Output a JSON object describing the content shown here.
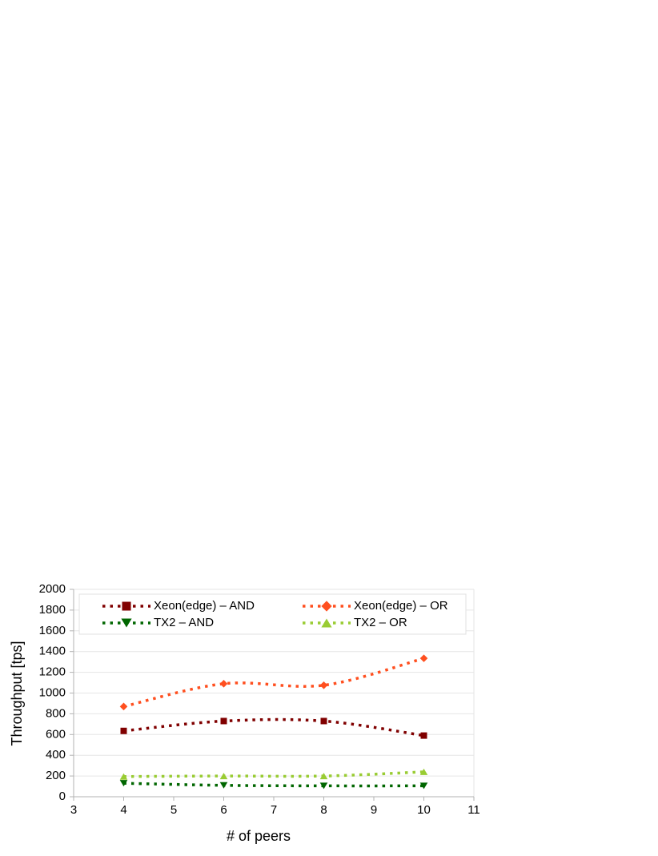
{
  "chart_data": {
    "type": "line",
    "x_label": "# of peers",
    "y_label": "Throughput [tps]",
    "x": [
      4,
      6,
      8,
      10
    ],
    "series": [
      {
        "name": "Xeon(edge) – AND",
        "color": "#800000",
        "marker": "square",
        "values": [
          635,
          730,
          730,
          590
        ]
      },
      {
        "name": "Xeon(edge) – OR",
        "color": "#ff4f1f",
        "marker": "diamond",
        "values": [
          870,
          1090,
          1075,
          1335
        ]
      },
      {
        "name": "TX2 – AND",
        "color": "#006600",
        "marker": "triangle-down",
        "values": [
          130,
          110,
          105,
          105
        ]
      },
      {
        "name": "TX2 – OR",
        "color": "#99cc33",
        "marker": "triangle-up",
        "values": [
          195,
          200,
          200,
          240
        ]
      }
    ],
    "xlim": [
      3,
      11
    ],
    "xticks": [
      3,
      4,
      5,
      6,
      7,
      8,
      9,
      10,
      11
    ],
    "ylim": [
      0,
      2000
    ],
    "yticks": [
      0,
      200,
      400,
      600,
      800,
      1000,
      1200,
      1400,
      1600,
      1800,
      2000
    ],
    "grid": true,
    "legend": "top"
  }
}
